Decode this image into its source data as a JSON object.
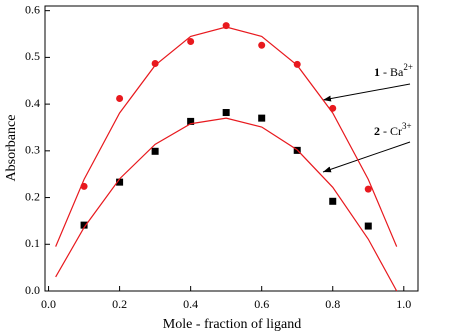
{
  "chart_data": {
    "type": "scatter",
    "xlabel": "Mole - fraction of ligand",
    "ylabel": "Absorbance",
    "xlim": [
      -0.01,
      1.04
    ],
    "ylim": [
      0,
      0.61
    ],
    "xticks": [
      {
        "value": 0,
        "label": "0.0"
      },
      0.2,
      0.4,
      0.6,
      0.8,
      {
        "value": 1,
        "label": "1.0"
      }
    ],
    "yticks": [
      {
        "value": 0,
        "label": "0.0"
      },
      0.1,
      0.2,
      0.3,
      0.4,
      0.5,
      0.6
    ],
    "series": [
      {
        "color": "#e8191e",
        "marker": "circle",
        "x": [
          0.1,
          0.2,
          0.3,
          0.4,
          0.5,
          0.6,
          0.7,
          0.8,
          0.9
        ],
        "values": [
          0.224,
          0.412,
          0.487,
          0.534,
          0.568,
          0.526,
          0.485,
          0.391,
          0.218
        ]
      },
      {
        "color": "#000000",
        "marker": "square",
        "x": [
          0.1,
          0.2,
          0.3,
          0.4,
          0.5,
          0.6,
          0.7,
          0.8,
          0.9
        ],
        "values": [
          0.141,
          0.233,
          0.299,
          0.363,
          0.382,
          0.37,
          0.301,
          0.192,
          0.139
        ]
      },
      {
        "color": "#e8191e",
        "marker": "line",
        "x": [
          0.02,
          0.1,
          0.2,
          0.3,
          0.4,
          0.5,
          0.6,
          0.7,
          0.8,
          0.9,
          0.98
        ],
        "values": [
          0.095,
          0.239,
          0.381,
          0.483,
          0.545,
          0.565,
          0.545,
          0.483,
          0.381,
          0.239,
          0.095
        ]
      },
      {
        "color": "#e8191e",
        "marker": "line",
        "x": [
          0.02,
          0.1,
          0.2,
          0.3,
          0.4,
          0.5,
          0.6,
          0.7,
          0.8,
          0.9,
          0.98
        ],
        "values": [
          0.03,
          0.136,
          0.24,
          0.314,
          0.358,
          0.37,
          0.351,
          0.302,
          0.222,
          0.111,
          0.0
        ]
      }
    ],
    "annotations": [
      {
        "number": "1",
        "text": " - Ba",
        "sup": "2+"
      },
      {
        "number": "2",
        "text": " - Cr",
        "sup": "3+"
      }
    ]
  }
}
